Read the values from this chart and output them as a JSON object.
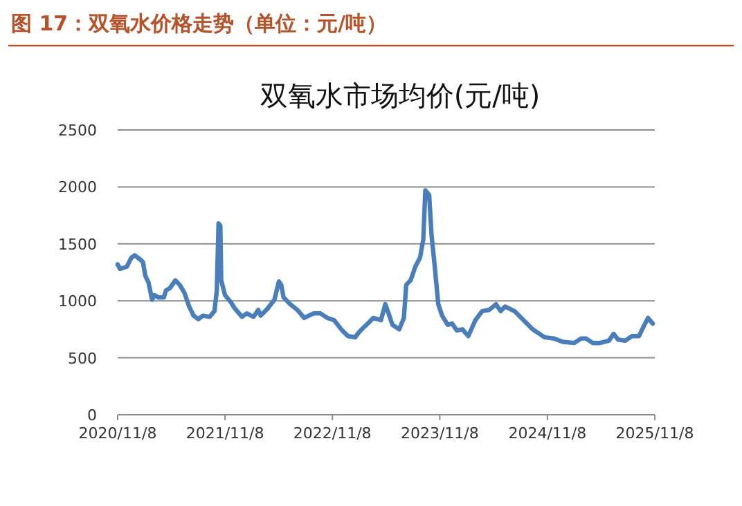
{
  "chart_data": {
    "type": "line",
    "title": "图 17：双氧水价格走势（单位：元/吨）",
    "subtitle": "双氧水市场均价(元/吨)",
    "x": [
      "2020-11-08",
      "2020-11-16",
      "2020-12-09",
      "2020-12-25",
      "2021-01-05",
      "2021-01-25",
      "2021-02-02",
      "2021-02-10",
      "2021-02-21",
      "2021-03-05",
      "2021-03-13",
      "2021-03-26",
      "2021-04-14",
      "2021-04-21",
      "2021-05-04",
      "2021-05-23",
      "2021-06-07",
      "2021-06-23",
      "2021-07-09",
      "2021-07-24",
      "2021-08-09",
      "2021-08-25",
      "2021-09-17",
      "2021-10-03",
      "2021-10-11",
      "2021-10-17",
      "2021-10-23",
      "2021-10-26",
      "2021-11-08",
      "2021-11-27",
      "2021-12-12",
      "2022-01-05",
      "2022-01-21",
      "2022-02-13",
      "2022-03-01",
      "2022-03-09",
      "2022-04-01",
      "2022-04-25",
      "2022-05-10",
      "2022-05-18",
      "2022-05-26",
      "2022-06-18",
      "2022-07-12",
      "2022-08-04",
      "2022-09-05",
      "2022-09-28",
      "2022-10-22",
      "2022-11-14",
      "2022-12-08",
      "2022-12-31",
      "2023-01-24",
      "2023-02-08",
      "2023-03-04",
      "2023-03-27",
      "2023-04-22",
      "2023-05-07",
      "2023-05-18",
      "2023-05-31",
      "2023-06-23",
      "2023-07-09",
      "2023-07-17",
      "2023-08-01",
      "2023-08-17",
      "2023-09-02",
      "2023-09-13",
      "2023-09-20",
      "2023-10-03",
      "2023-10-11",
      "2023-10-22",
      "2023-11-03",
      "2023-11-16",
      "2023-12-05",
      "2023-12-20",
      "2024-01-05",
      "2024-01-24",
      "2024-02-13",
      "2024-03-08",
      "2024-03-31",
      "2024-04-24",
      "2024-05-17",
      "2024-06-02",
      "2024-06-17",
      "2024-07-19",
      "2024-08-19",
      "2024-09-19",
      "2024-10-29",
      "2024-11-29",
      "2024-12-30",
      "2025-02-07",
      "2025-03-03",
      "2025-03-19",
      "2025-04-11",
      "2025-05-05",
      "2025-06-05",
      "2025-06-21",
      "2025-07-06",
      "2025-07-30",
      "2025-08-22",
      "2025-09-15",
      "2025-09-30",
      "2025-10-16",
      "2025-11-01"
    ],
    "series": [
      {
        "color": "#4a7ebb",
        "values": [
          1320,
          1280,
          1300,
          1380,
          1400,
          1360,
          1340,
          1220,
          1160,
          1010,
          1050,
          1030,
          1030,
          1090,
          1110,
          1180,
          1140,
          1070,
          950,
          870,
          840,
          870,
          860,
          910,
          1090,
          1680,
          1660,
          1180,
          1050,
          990,
          930,
          860,
          890,
          860,
          920,
          870,
          930,
          1010,
          1170,
          1140,
          1030,
          970,
          920,
          850,
          890,
          890,
          850,
          830,
          750,
          690,
          680,
          730,
          790,
          850,
          830,
          970,
          890,
          790,
          750,
          850,
          1140,
          1180,
          1300,
          1380,
          1540,
          1970,
          1930,
          1580,
          1300,
          970,
          870,
          790,
          800,
          740,
          750,
          690,
          830,
          910,
          920,
          970,
          910,
          950,
          910,
          830,
          750,
          680,
          670,
          640,
          630,
          670,
          670,
          630,
          630,
          650,
          710,
          660,
          650,
          690,
          690,
          770,
          850,
          800
        ]
      }
    ],
    "xlim": [
      "2020-11-08",
      "2025-11-08"
    ],
    "xticks": [
      {
        "value": "2020-11-08",
        "label": "2020/11/8"
      },
      {
        "value": "2021-11-08",
        "label": "2021/11/8"
      },
      {
        "value": "2022-11-08",
        "label": "2022/11/8"
      },
      {
        "value": "2023-11-08",
        "label": "2023/11/8"
      },
      {
        "value": "2024-11-08",
        "label": "2024/11/8"
      },
      {
        "value": "2025-11-08",
        "label": "2025/11/8"
      }
    ],
    "ylim": [
      0,
      2500
    ],
    "yticks": [
      0,
      500,
      1000,
      1500,
      2000,
      2500
    ],
    "grid": "y",
    "marker": "none",
    "line_style": "solid"
  }
}
